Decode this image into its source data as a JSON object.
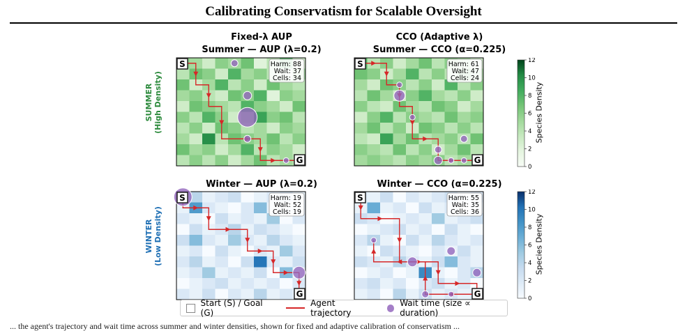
{
  "page_title": "Calibrating Conservatism for Scalable Oversight",
  "col_titles": [
    "Fixed-λ AUP",
    "CCO (Adaptive λ)"
  ],
  "row_labels": {
    "summer": [
      "SUMMER",
      "(High Density)"
    ],
    "winter": [
      "WINTER",
      "(Low Density)"
    ]
  },
  "colors": {
    "summer_ramp": [
      "#f7fcf5",
      "#e5f5e0",
      "#c7e9c0",
      "#a1d99b",
      "#74c476",
      "#41ab5d",
      "#238b45",
      "#00441b"
    ],
    "winter_ramp": [
      "#f7fbff",
      "#deebf7",
      "#c6dbef",
      "#9ecae1",
      "#6baed6",
      "#4292c6",
      "#2171b5",
      "#08306b"
    ],
    "trajectory": "#d62728",
    "wait": "#9467bd",
    "summer_label": "#2e8b3e",
    "winter_label": "#2171b5"
  },
  "colorbar": {
    "label": "Species Density",
    "ticks": [
      "0",
      "2",
      "4",
      "6",
      "8",
      "10",
      "12"
    ],
    "max": 12
  },
  "legend": {
    "start_goal": "Start (S) / Goal (G)",
    "trajectory": "Agent trajectory",
    "wait": "Wait time (size ∝ duration)"
  },
  "caption": "... the agent's trajectory and wait time across summer and winter densities, shown for fixed and adaptive calibration of conservatism ...",
  "panels": [
    {
      "title": "Summer — AUP (λ=0.2)",
      "season": "summer",
      "stats": {
        "harm": "Harm: 88",
        "wait": "Wait: 37",
        "cells": "Cells: 34"
      },
      "start": "S",
      "goal": "G",
      "grid": [
        [
          6,
          5,
          3,
          6,
          5,
          7,
          2,
          4,
          8,
          3
        ],
        [
          4,
          7,
          6,
          3,
          8,
          5,
          6,
          4,
          2,
          6
        ],
        [
          7,
          3,
          5,
          8,
          4,
          6,
          3,
          7,
          5,
          4
        ],
        [
          5,
          6,
          4,
          3,
          7,
          6,
          8,
          2,
          6,
          5
        ],
        [
          3,
          7,
          6,
          5,
          4,
          8,
          6,
          5,
          3,
          7
        ],
        [
          6,
          4,
          8,
          6,
          3,
          5,
          9,
          6,
          7,
          4
        ],
        [
          4,
          6,
          3,
          7,
          6,
          4,
          5,
          3,
          6,
          5
        ],
        [
          5,
          3,
          10,
          4,
          7,
          6,
          5,
          7,
          4,
          6
        ],
        [
          7,
          5,
          6,
          3,
          5,
          8,
          4,
          6,
          5,
          3
        ],
        [
          4,
          6,
          4,
          6,
          3,
          5,
          7,
          4,
          5,
          4
        ]
      ],
      "path": [
        [
          0.5,
          0.5
        ],
        [
          1.5,
          0.5
        ],
        [
          1.5,
          2.5
        ],
        [
          2.5,
          2.5
        ],
        [
          2.5,
          4.5
        ],
        [
          3.5,
          4.5
        ],
        [
          3.5,
          7.5
        ],
        [
          4.5,
          7.5
        ],
        [
          4.5,
          7.5
        ],
        [
          6.5,
          7.5
        ],
        [
          6.5,
          9.5
        ],
        [
          8.5,
          9.5
        ],
        [
          9.5,
          9.5
        ]
      ],
      "waits": [
        [
          4.5,
          0.5,
          5
        ],
        [
          5.5,
          3.5,
          6
        ],
        [
          5.5,
          5.5,
          14
        ],
        [
          5.5,
          7.5,
          5
        ],
        [
          8.5,
          9.5,
          4
        ]
      ]
    },
    {
      "title": "Summer — CCO (α=0.225)",
      "season": "summer",
      "stats": {
        "harm": "Harm: 61",
        "wait": "Wait: 47",
        "cells": "Cells: 24"
      },
      "start": "S",
      "goal": "G",
      "grid": [
        [
          8,
          4,
          6,
          3,
          5,
          7,
          4,
          6,
          5,
          3
        ],
        [
          7,
          6,
          3,
          5,
          8,
          4,
          6,
          4,
          7,
          5
        ],
        [
          5,
          3,
          7,
          6,
          4,
          6,
          3,
          8,
          4,
          6
        ],
        [
          4,
          7,
          5,
          3,
          6,
          8,
          5,
          4,
          6,
          3
        ],
        [
          6,
          4,
          3,
          7,
          5,
          4,
          7,
          6,
          3,
          5
        ],
        [
          3,
          6,
          8,
          4,
          6,
          5,
          4,
          7,
          5,
          6
        ],
        [
          5,
          7,
          4,
          6,
          3,
          7,
          6,
          4,
          6,
          4
        ],
        [
          4,
          3,
          9,
          5,
          7,
          4,
          5,
          6,
          4,
          7
        ],
        [
          6,
          5,
          4,
          7,
          4,
          6,
          3,
          5,
          7,
          4
        ],
        [
          5,
          6,
          5,
          4,
          6,
          5,
          6,
          4,
          5,
          5
        ]
      ],
      "path": [
        [
          0.5,
          0.5
        ],
        [
          2.5,
          0.5
        ],
        [
          2.5,
          2.5
        ],
        [
          3.5,
          2.5
        ],
        [
          3.5,
          4.5
        ],
        [
          4.5,
          4.5
        ],
        [
          4.5,
          7.5
        ],
        [
          6.5,
          7.5
        ],
        [
          6.5,
          8.5
        ],
        [
          6.5,
          9.5
        ],
        [
          8.5,
          9.5
        ],
        [
          9.5,
          9.5
        ]
      ],
      "waits": [
        [
          3.5,
          2.5,
          4
        ],
        [
          3.5,
          3.5,
          8
        ],
        [
          4.5,
          5.5,
          4
        ],
        [
          6.5,
          8.5,
          5
        ],
        [
          6.5,
          9.5,
          6
        ],
        [
          7.5,
          9.5,
          4
        ],
        [
          8.5,
          9.5,
          4
        ],
        [
          8.5,
          7.5,
          5
        ]
      ]
    },
    {
      "title": "Winter — AUP (λ=0.2)",
      "season": "winter",
      "stats": {
        "harm": "Harm: 19",
        "wait": "Wait: 52",
        "cells": "Cells: 19"
      },
      "start": "S",
      "goal": "G",
      "grid": [
        [
          2,
          4,
          1,
          2,
          3,
          0,
          1,
          2,
          3,
          1
        ],
        [
          1,
          8,
          2,
          1,
          0,
          2,
          6,
          1,
          2,
          1
        ],
        [
          2,
          1,
          0,
          3,
          1,
          2,
          1,
          5,
          0,
          2
        ],
        [
          0,
          3,
          1,
          2,
          4,
          1,
          3,
          2,
          1,
          0
        ],
        [
          3,
          6,
          2,
          1,
          5,
          2,
          1,
          4,
          2,
          1
        ],
        [
          1,
          2,
          0,
          3,
          1,
          0,
          2,
          1,
          5,
          2
        ],
        [
          2,
          4,
          1,
          2,
          0,
          3,
          10,
          2,
          1,
          3
        ],
        [
          1,
          2,
          5,
          1,
          2,
          1,
          3,
          0,
          6,
          1
        ],
        [
          0,
          1,
          2,
          3,
          1,
          2,
          1,
          2,
          0,
          2
        ],
        [
          2,
          1,
          3,
          0,
          2,
          1,
          4,
          1,
          2,
          1
        ]
      ],
      "path": [
        [
          0.5,
          0.5
        ],
        [
          0.5,
          1.5
        ],
        [
          2.5,
          1.5
        ],
        [
          2.5,
          3.5
        ],
        [
          5.5,
          3.5
        ],
        [
          5.5,
          5.5
        ],
        [
          7.5,
          5.5
        ],
        [
          7.5,
          7.5
        ],
        [
          9.5,
          7.5
        ],
        [
          9.5,
          9.5
        ]
      ],
      "waits": [
        [
          0.5,
          0.5,
          13
        ],
        [
          9.5,
          7.5,
          9
        ]
      ]
    },
    {
      "title": "Winter — CCO (α=0.225)",
      "season": "winter",
      "stats": {
        "harm": "Harm: 55",
        "wait": "Wait: 35",
        "cells": "Cells: 36"
      },
      "start": "S",
      "goal": "G",
      "grid": [
        [
          2,
          1,
          3,
          0,
          2,
          1,
          2,
          3,
          1,
          2
        ],
        [
          1,
          7,
          1,
          2,
          0,
          3,
          1,
          2,
          0,
          1
        ],
        [
          3,
          2,
          0,
          1,
          2,
          1,
          5,
          1,
          2,
          3
        ],
        [
          0,
          1,
          2,
          3,
          1,
          2,
          0,
          3,
          1,
          0
        ],
        [
          2,
          4,
          1,
          0,
          3,
          1,
          4,
          2,
          1,
          2
        ],
        [
          1,
          0,
          3,
          2,
          1,
          0,
          2,
          1,
          3,
          1
        ],
        [
          3,
          2,
          1,
          4,
          2,
          1,
          3,
          6,
          2,
          1
        ],
        [
          0,
          1,
          2,
          0,
          1,
          9,
          1,
          0,
          2,
          4
        ],
        [
          2,
          3,
          1,
          2,
          0,
          2,
          3,
          1,
          2,
          0
        ],
        [
          1,
          2,
          0,
          4,
          1,
          3,
          1,
          2,
          1,
          2
        ]
      ],
      "path": [
        [
          0.5,
          0.5
        ],
        [
          0.5,
          2.5
        ],
        [
          3.5,
          2.5
        ],
        [
          3.5,
          6.5
        ],
        [
          6.5,
          6.5
        ],
        [
          6.5,
          8.5
        ],
        [
          9.5,
          8.5
        ],
        [
          9.5,
          9.5
        ],
        [
          5.5,
          9.5
        ],
        [
          5.5,
          6.5
        ],
        [
          1.5,
          6.5
        ],
        [
          1.5,
          4.5
        ],
        [
          1.5,
          4.5
        ]
      ],
      "waits": [
        [
          1.5,
          4.5,
          4
        ],
        [
          4.5,
          6.5,
          7
        ],
        [
          7.5,
          5.5,
          6
        ],
        [
          9.5,
          7.5,
          6
        ],
        [
          5.5,
          9.5,
          5
        ],
        [
          7.5,
          9.5,
          4
        ]
      ]
    }
  ]
}
